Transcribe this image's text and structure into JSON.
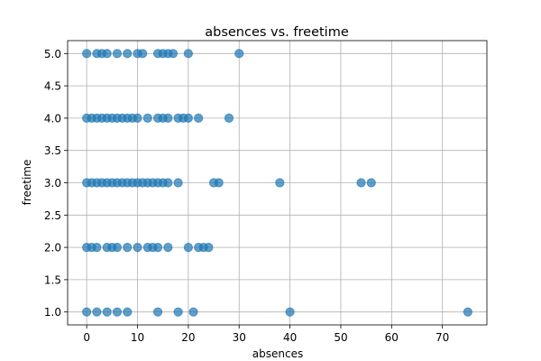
{
  "chart_data": {
    "type": "scatter",
    "title": "absences vs. freetime",
    "xlabel": "absences",
    "ylabel": "freetime",
    "xlim": [
      -3.75,
      78.75
    ],
    "ylim": [
      0.8,
      5.2
    ],
    "xticks": [
      0,
      10,
      20,
      30,
      40,
      50,
      60,
      70
    ],
    "yticks": [
      1.0,
      1.5,
      2.0,
      2.5,
      3.0,
      3.5,
      4.0,
      4.5,
      5.0
    ],
    "grid": true,
    "marker_color": "#1f77b4",
    "marker_alpha": 0.7,
    "series": [
      {
        "points": [
          [
            0,
            5
          ],
          [
            2,
            5
          ],
          [
            3,
            5
          ],
          [
            4,
            5
          ],
          [
            6,
            5
          ],
          [
            8,
            5
          ],
          [
            10,
            5
          ],
          [
            11,
            5
          ],
          [
            14,
            5
          ],
          [
            15,
            5
          ],
          [
            16,
            5
          ],
          [
            17,
            5
          ],
          [
            20,
            5
          ],
          [
            30,
            5
          ],
          [
            0,
            4
          ],
          [
            1,
            4
          ],
          [
            2,
            4
          ],
          [
            3,
            4
          ],
          [
            4,
            4
          ],
          [
            5,
            4
          ],
          [
            6,
            4
          ],
          [
            7,
            4
          ],
          [
            8,
            4
          ],
          [
            9,
            4
          ],
          [
            10,
            4
          ],
          [
            12,
            4
          ],
          [
            14,
            4
          ],
          [
            15,
            4
          ],
          [
            16,
            4
          ],
          [
            18,
            4
          ],
          [
            19,
            4
          ],
          [
            20,
            4
          ],
          [
            22,
            4
          ],
          [
            28,
            4
          ],
          [
            0,
            3
          ],
          [
            1,
            3
          ],
          [
            2,
            3
          ],
          [
            3,
            3
          ],
          [
            4,
            3
          ],
          [
            5,
            3
          ],
          [
            6,
            3
          ],
          [
            7,
            3
          ],
          [
            8,
            3
          ],
          [
            9,
            3
          ],
          [
            10,
            3
          ],
          [
            11,
            3
          ],
          [
            12,
            3
          ],
          [
            13,
            3
          ],
          [
            14,
            3
          ],
          [
            15,
            3
          ],
          [
            16,
            3
          ],
          [
            18,
            3
          ],
          [
            25,
            3
          ],
          [
            26,
            3
          ],
          [
            38,
            3
          ],
          [
            54,
            3
          ],
          [
            56,
            3
          ],
          [
            0,
            2
          ],
          [
            1,
            2
          ],
          [
            2,
            2
          ],
          [
            4,
            2
          ],
          [
            5,
            2
          ],
          [
            6,
            2
          ],
          [
            8,
            2
          ],
          [
            10,
            2
          ],
          [
            12,
            2
          ],
          [
            13,
            2
          ],
          [
            14,
            2
          ],
          [
            16,
            2
          ],
          [
            20,
            2
          ],
          [
            22,
            2
          ],
          [
            23,
            2
          ],
          [
            24,
            2
          ],
          [
            0,
            1
          ],
          [
            2,
            1
          ],
          [
            4,
            1
          ],
          [
            6,
            1
          ],
          [
            8,
            1
          ],
          [
            14,
            1
          ],
          [
            18,
            1
          ],
          [
            21,
            1
          ],
          [
            40,
            1
          ],
          [
            75,
            1
          ]
        ]
      }
    ]
  }
}
